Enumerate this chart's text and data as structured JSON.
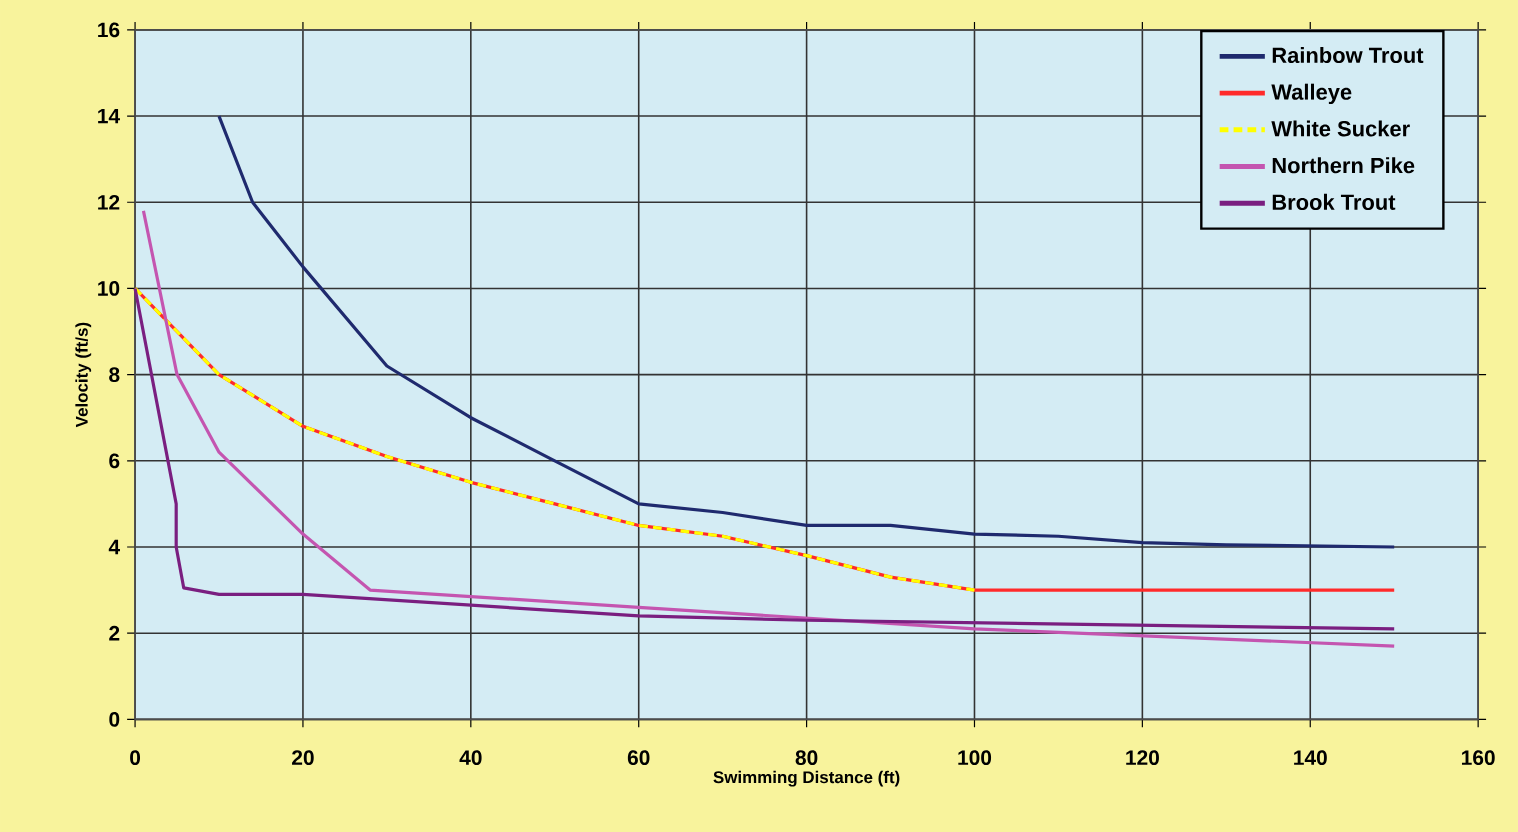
{
  "chart_data": {
    "type": "line",
    "xlabel": "Swimming Distance (ft)",
    "ylabel": "Velocity (ft/s)",
    "xlim": [
      0,
      160
    ],
    "ylim": [
      0,
      16
    ],
    "xticks": [
      0,
      20,
      40,
      60,
      80,
      100,
      120,
      140,
      160
    ],
    "yticks": [
      0,
      2,
      4,
      6,
      8,
      10,
      12,
      14,
      16
    ],
    "grid": true,
    "legend": "top right",
    "marker": "none",
    "series": [
      {
        "name": "Rainbow Trout",
        "color": "#1f2a6e",
        "x": [
          10,
          14,
          20,
          30,
          40,
          50,
          60,
          70,
          80,
          90,
          100,
          110,
          120,
          130,
          150
        ],
        "values": [
          14,
          12,
          10.5,
          8.2,
          7,
          6,
          5,
          4.8,
          4.5,
          4.5,
          4.3,
          4.25,
          4.1,
          4.05,
          4.0
        ]
      },
      {
        "name": "Walleye",
        "color": "#ff2a2a",
        "x": [
          0,
          10,
          20,
          30,
          40,
          50,
          60,
          70,
          80,
          90,
          100,
          150
        ],
        "values": [
          10,
          8,
          6.8,
          6.1,
          5.5,
          5.0,
          4.5,
          4.25,
          3.8,
          3.3,
          3.0,
          3.0
        ]
      },
      {
        "name": "White Sucker",
        "color": "#ffff00",
        "line_style": "dashed",
        "x": [
          0,
          10,
          20,
          30,
          40,
          50,
          60,
          70,
          80,
          90,
          100
        ],
        "values": [
          10,
          8,
          6.8,
          6.1,
          5.5,
          5.0,
          4.5,
          4.25,
          3.8,
          3.3,
          3.0
        ]
      },
      {
        "name": "Northern Pike",
        "color": "#c455b0",
        "x": [
          1,
          5,
          10,
          20,
          28,
          60,
          100,
          150
        ],
        "values": [
          11.8,
          8,
          6.2,
          4.3,
          3.0,
          2.6,
          2.1,
          1.7
        ]
      },
      {
        "name": "Brook Trout",
        "color": "#7a1f80",
        "x": [
          0,
          4.9,
          4.9,
          5.8,
          10,
          20,
          60,
          80,
          150
        ],
        "values": [
          10,
          5,
          4,
          3.05,
          2.9,
          2.9,
          2.4,
          2.3,
          2.1
        ]
      }
    ]
  }
}
